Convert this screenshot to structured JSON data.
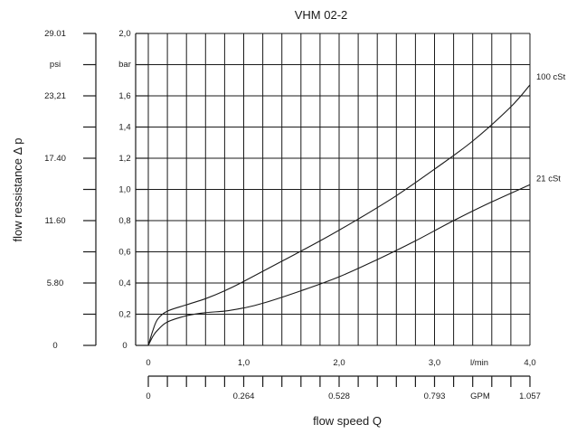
{
  "chart_data": {
    "type": "line",
    "title": "VHM 02-2",
    "xlabel": "flow speed Q",
    "ylabel": "flow ressistance Δ p",
    "x_unit": "l/min",
    "x_unit_secondary": "GPM",
    "y_unit": "bar",
    "y_unit_secondary": "psi",
    "xlim": [
      0,
      4.0
    ],
    "ylim": [
      0,
      2.0
    ],
    "grid": true,
    "x_ticks": [
      {
        "value": 0,
        "label": "0"
      },
      {
        "value": 1.0,
        "label": "1,0"
      },
      {
        "value": 2.0,
        "label": "2,0"
      },
      {
        "value": 3.0,
        "label": "3,0"
      },
      {
        "value": 4.0,
        "label": "4,0"
      }
    ],
    "x_ticks_secondary": [
      {
        "value": 0,
        "label": "0"
      },
      {
        "value": 1.0,
        "label": "0.264"
      },
      {
        "value": 2.0,
        "label": "0.528"
      },
      {
        "value": 3.0,
        "label": "0.793"
      },
      {
        "value": 4.0,
        "label": "1.057"
      }
    ],
    "y_ticks": [
      {
        "value": 0,
        "label": "0"
      },
      {
        "value": 0.2,
        "label": "0,2"
      },
      {
        "value": 0.4,
        "label": "0,4"
      },
      {
        "value": 0.6,
        "label": "0,6"
      },
      {
        "value": 0.8,
        "label": "0,8"
      },
      {
        "value": 1.0,
        "label": "1,0"
      },
      {
        "value": 1.2,
        "label": "1,2"
      },
      {
        "value": 1.4,
        "label": "1,4"
      },
      {
        "value": 1.6,
        "label": "1,6"
      },
      {
        "value": 2.0,
        "label": "2,0"
      }
    ],
    "y_ticks_secondary": [
      {
        "value": 0,
        "label": "0"
      },
      {
        "value": 0.4,
        "label": "5.80"
      },
      {
        "value": 0.8,
        "label": "11.60"
      },
      {
        "value": 1.2,
        "label": "17.40"
      },
      {
        "value": 1.6,
        "label": "23,21"
      },
      {
        "value": 2.0,
        "label": "29.01"
      }
    ],
    "series": [
      {
        "name": "100 cSt",
        "x": [
          0,
          0.05,
          0.1,
          0.2,
          0.4,
          0.6,
          0.8,
          1.0,
          1.4,
          1.8,
          2.2,
          2.6,
          3.0,
          3.4,
          3.8,
          4.0
        ],
        "y": [
          0,
          0.1,
          0.17,
          0.22,
          0.26,
          0.3,
          0.35,
          0.41,
          0.54,
          0.67,
          0.81,
          0.96,
          1.13,
          1.31,
          1.53,
          1.67
        ]
      },
      {
        "name": "21 cSt",
        "x": [
          0,
          0.05,
          0.1,
          0.2,
          0.4,
          0.6,
          0.8,
          1.0,
          1.2,
          1.6,
          2.0,
          2.4,
          2.8,
          3.2,
          3.6,
          4.0
        ],
        "y": [
          0,
          0.06,
          0.1,
          0.15,
          0.19,
          0.21,
          0.22,
          0.24,
          0.27,
          0.35,
          0.44,
          0.55,
          0.67,
          0.8,
          0.92,
          1.03
        ]
      }
    ]
  }
}
